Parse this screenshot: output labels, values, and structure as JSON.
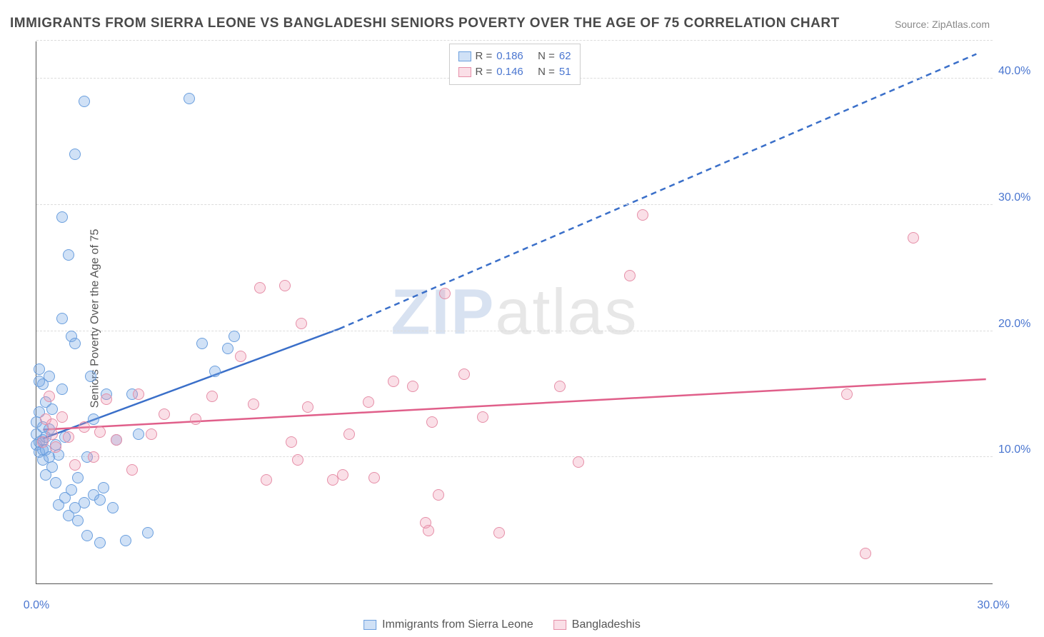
{
  "title": "IMMIGRANTS FROM SIERRA LEONE VS BANGLADESHI SENIORS POVERTY OVER THE AGE OF 75 CORRELATION CHART",
  "source": "Source: ZipAtlas.com",
  "ylabel": "Seniors Poverty Over the Age of 75",
  "watermark": {
    "z": "ZIP",
    "rest": "atlas"
  },
  "chart": {
    "type": "scatter",
    "xlim": [
      0,
      30
    ],
    "ylim": [
      0,
      43
    ],
    "xticks": [
      {
        "v": 0,
        "label": "0.0%"
      },
      {
        "v": 30,
        "label": "30.0%"
      }
    ],
    "yticks": [
      {
        "v": 10,
        "label": "10.0%"
      },
      {
        "v": 20,
        "label": "20.0%"
      },
      {
        "v": 30,
        "label": "30.0%"
      },
      {
        "v": 40,
        "label": "40.0%"
      }
    ],
    "grid_color": "#dcdcdc",
    "point_radius": 8,
    "series": [
      {
        "name": "Immigrants from Sierra Leone",
        "fill": "rgba(120,170,230,0.35)",
        "stroke": "#6b9fde",
        "R": "0.186",
        "N": "62",
        "trend": {
          "solid": {
            "x1": 0.2,
            "y1": 11.5,
            "x2": 9.5,
            "y2": 20.2
          },
          "dashed": {
            "x1": 9.5,
            "y1": 20.2,
            "x2": 29.5,
            "y2": 42.0
          },
          "color": "#3a6fc9",
          "width": 2.5
        },
        "points": [
          [
            0.0,
            11.0
          ],
          [
            0.0,
            11.8
          ],
          [
            0.0,
            12.8
          ],
          [
            0.1,
            10.4
          ],
          [
            0.1,
            11.2
          ],
          [
            0.1,
            13.6
          ],
          [
            0.1,
            16.0
          ],
          [
            0.1,
            17.0
          ],
          [
            0.2,
            9.8
          ],
          [
            0.2,
            10.6
          ],
          [
            0.2,
            11.4
          ],
          [
            0.2,
            12.4
          ],
          [
            0.2,
            15.8
          ],
          [
            0.3,
            8.6
          ],
          [
            0.3,
            10.6
          ],
          [
            0.3,
            11.6
          ],
          [
            0.3,
            14.4
          ],
          [
            0.4,
            10.0
          ],
          [
            0.4,
            12.2
          ],
          [
            0.4,
            16.4
          ],
          [
            0.5,
            9.2
          ],
          [
            0.5,
            13.8
          ],
          [
            0.6,
            8.0
          ],
          [
            0.6,
            11.0
          ],
          [
            0.7,
            6.2
          ],
          [
            0.7,
            10.2
          ],
          [
            0.8,
            15.4
          ],
          [
            0.8,
            21.0
          ],
          [
            0.8,
            29.0
          ],
          [
            0.9,
            6.8
          ],
          [
            0.9,
            11.6
          ],
          [
            1.0,
            5.4
          ],
          [
            1.0,
            26.0
          ],
          [
            1.1,
            7.4
          ],
          [
            1.1,
            19.6
          ],
          [
            1.2,
            6.0
          ],
          [
            1.2,
            19.0
          ],
          [
            1.2,
            34.0
          ],
          [
            1.3,
            5.0
          ],
          [
            1.3,
            8.4
          ],
          [
            1.5,
            6.4
          ],
          [
            1.5,
            38.2
          ],
          [
            1.6,
            3.8
          ],
          [
            1.6,
            10.0
          ],
          [
            1.7,
            16.4
          ],
          [
            1.8,
            7.0
          ],
          [
            1.8,
            13.0
          ],
          [
            2.0,
            3.2
          ],
          [
            2.0,
            6.6
          ],
          [
            2.1,
            7.6
          ],
          [
            2.2,
            15.0
          ],
          [
            2.4,
            6.0
          ],
          [
            2.5,
            11.4
          ],
          [
            2.8,
            3.4
          ],
          [
            3.0,
            15.0
          ],
          [
            3.2,
            11.8
          ],
          [
            3.5,
            4.0
          ],
          [
            4.8,
            38.4
          ],
          [
            5.2,
            19.0
          ],
          [
            5.6,
            16.8
          ],
          [
            6.0,
            18.6
          ],
          [
            6.2,
            19.6
          ]
        ]
      },
      {
        "name": "Bangladeshis",
        "fill": "rgba(240,150,175,0.30)",
        "stroke": "#e68fa8",
        "R": "0.146",
        "N": "51",
        "trend": {
          "solid": {
            "x1": 0.2,
            "y1": 12.2,
            "x2": 29.8,
            "y2": 16.2
          },
          "color": "#e05f8a",
          "width": 2.5
        },
        "points": [
          [
            0.2,
            11.2
          ],
          [
            0.3,
            13.0
          ],
          [
            0.4,
            14.8
          ],
          [
            0.5,
            11.8
          ],
          [
            0.5,
            12.6
          ],
          [
            0.6,
            10.8
          ],
          [
            0.8,
            13.2
          ],
          [
            1.0,
            11.6
          ],
          [
            1.2,
            9.4
          ],
          [
            1.5,
            12.4
          ],
          [
            1.8,
            10.0
          ],
          [
            2.0,
            12.0
          ],
          [
            2.2,
            14.6
          ],
          [
            2.5,
            11.4
          ],
          [
            3.0,
            9.0
          ],
          [
            3.2,
            15.0
          ],
          [
            3.6,
            11.8
          ],
          [
            4.0,
            13.4
          ],
          [
            5.0,
            13.0
          ],
          [
            5.5,
            14.8
          ],
          [
            6.4,
            18.0
          ],
          [
            6.8,
            14.2
          ],
          [
            7.0,
            23.4
          ],
          [
            7.2,
            8.2
          ],
          [
            7.8,
            23.6
          ],
          [
            8.0,
            11.2
          ],
          [
            8.2,
            9.8
          ],
          [
            8.3,
            20.6
          ],
          [
            8.5,
            14.0
          ],
          [
            9.3,
            8.2
          ],
          [
            9.6,
            8.6
          ],
          [
            9.8,
            11.8
          ],
          [
            10.4,
            14.4
          ],
          [
            10.6,
            8.4
          ],
          [
            11.2,
            16.0
          ],
          [
            11.8,
            15.6
          ],
          [
            12.2,
            4.8
          ],
          [
            12.3,
            4.2
          ],
          [
            12.4,
            12.8
          ],
          [
            12.6,
            7.0
          ],
          [
            12.8,
            23.0
          ],
          [
            13.4,
            16.6
          ],
          [
            14.0,
            13.2
          ],
          [
            14.5,
            4.0
          ],
          [
            16.4,
            15.6
          ],
          [
            17.0,
            9.6
          ],
          [
            18.6,
            24.4
          ],
          [
            19.0,
            29.2
          ],
          [
            25.4,
            15.0
          ],
          [
            26.0,
            2.4
          ],
          [
            27.5,
            27.4
          ]
        ]
      }
    ]
  },
  "legend_bottom": [
    {
      "swatch_fill": "rgba(120,170,230,0.35)",
      "swatch_stroke": "#6b9fde",
      "label": "Immigrants from Sierra Leone"
    },
    {
      "swatch_fill": "rgba(240,150,175,0.30)",
      "swatch_stroke": "#e68fa8",
      "label": "Bangladeshis"
    }
  ]
}
